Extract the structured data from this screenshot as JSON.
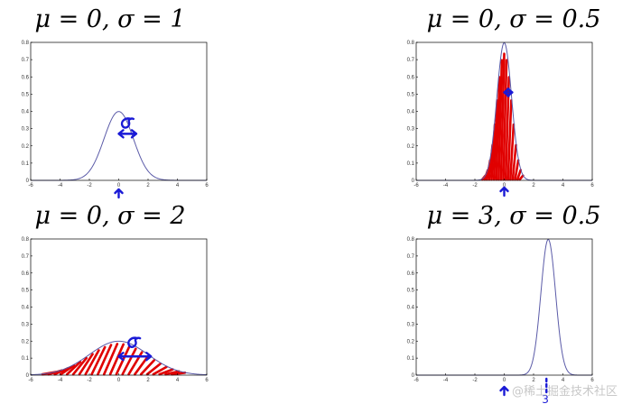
{
  "chart_data": [
    {
      "type": "line",
      "title": "μ = 0, σ = 1",
      "mu": 0,
      "sigma": 1,
      "xlim": [
        -6,
        6
      ],
      "ylim": [
        0,
        0.8
      ],
      "xticks": [
        "-6",
        "-4",
        "-2",
        "0",
        "2",
        "4",
        "6"
      ],
      "yticks": [
        "0",
        "0.1",
        "0.2",
        "0.3",
        "0.4",
        "0.5",
        "0.6",
        "0.7",
        "0.8"
      ],
      "peak": 0.4,
      "hatched": false
    },
    {
      "type": "line",
      "title": "μ = 0, σ = 0.5",
      "mu": 0,
      "sigma": 0.5,
      "xlim": [
        -6,
        6
      ],
      "ylim": [
        0,
        0.8
      ],
      "xticks": [
        "-6",
        "-4",
        "-2",
        "0",
        "2",
        "4",
        "6"
      ],
      "yticks": [
        "0",
        "0.1",
        "0.2",
        "0.3",
        "0.4",
        "0.5",
        "0.6",
        "0.7",
        "0.8"
      ],
      "peak": 0.8,
      "hatched": true
    },
    {
      "type": "line",
      "title": "μ = 0, σ = 2",
      "mu": 0,
      "sigma": 2,
      "xlim": [
        -6,
        6
      ],
      "ylim": [
        0,
        0.8
      ],
      "xticks": [
        "-6",
        "-4",
        "-2",
        "0",
        "2",
        "4",
        "6"
      ],
      "yticks": [
        "0",
        "0.1",
        "0.2",
        "0.3",
        "0.4",
        "0.5",
        "0.6",
        "0.7",
        "0.8"
      ],
      "peak": 0.2,
      "hatched": true
    },
    {
      "type": "line",
      "title": "μ = 3, σ = 0.5",
      "mu": 3,
      "sigma": 0.5,
      "xlim": [
        -6,
        6
      ],
      "ylim": [
        0,
        0.8
      ],
      "xticks": [
        "-6",
        "-4",
        "-2",
        "0",
        "2",
        "4",
        "6"
      ],
      "yticks": [
        "0",
        "0.1",
        "0.2",
        "0.3",
        "0.4",
        "0.5",
        "0.6",
        "0.7",
        "0.8"
      ],
      "peak": 0.8,
      "hatched": false
    }
  ],
  "annotations": {
    "sigma_glyph": "σ",
    "shift_label": "3"
  },
  "watermark": "@稀土掘金技术社区",
  "colors": {
    "curve": "#5b5ba8",
    "hatch": "#e00000",
    "ink": "#1a1ad6"
  }
}
